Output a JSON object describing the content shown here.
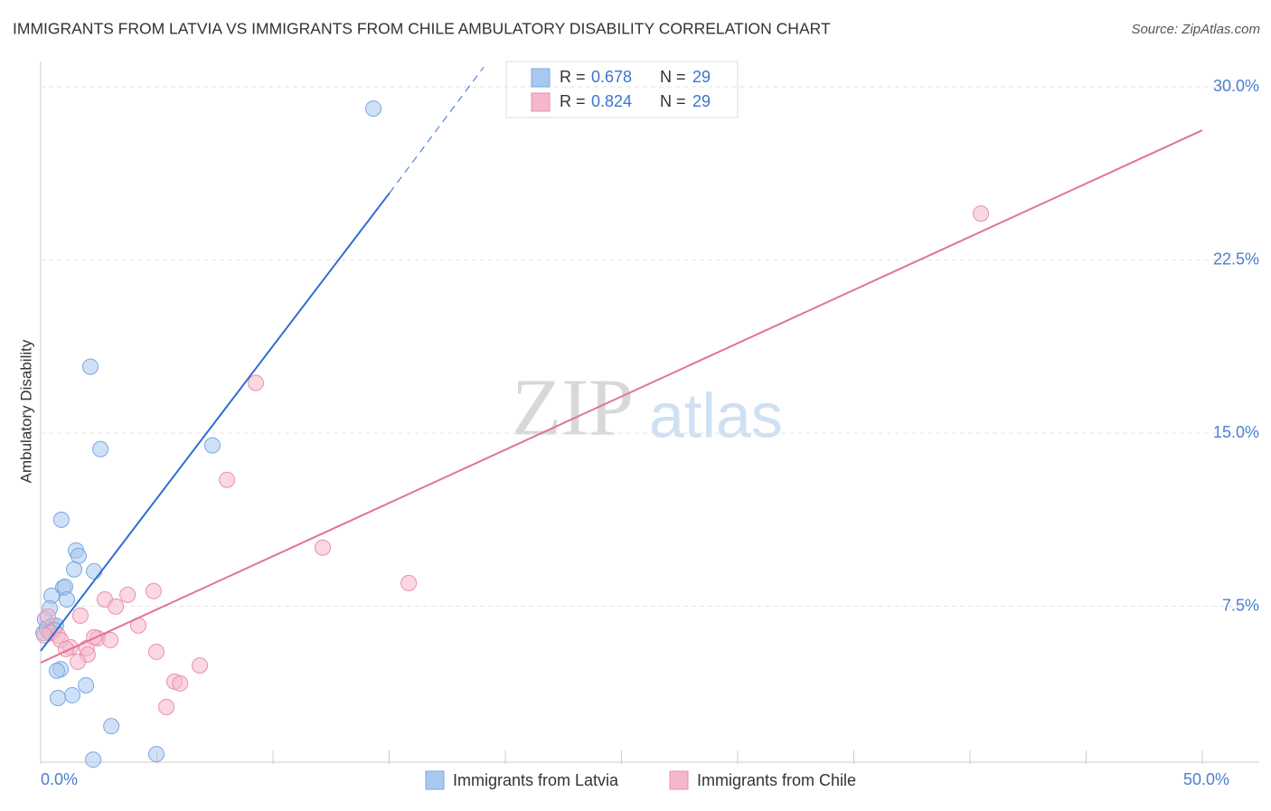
{
  "chart_data": {
    "type": "scatter",
    "title": "IMMIGRANTS FROM LATVIA VS IMMIGRANTS FROM CHILE AMBULATORY DISABILITY CORRELATION CHART",
    "source": "Source: ZipAtlas.com",
    "y_label": "Ambulatory Disability",
    "watermark": [
      "ZIP",
      "atlas"
    ],
    "xlim": [
      0,
      50
    ],
    "ylim": [
      0.75,
      31.1
    ],
    "xticks": [
      {
        "value": 0,
        "label": "0.0%"
      },
      {
        "value": 50,
        "label": "50.0%"
      }
    ],
    "xminor": [
      5,
      10,
      15,
      20,
      25,
      30,
      35,
      40,
      45
    ],
    "yticks": [
      {
        "value": 7.5,
        "label": "7.5%"
      },
      {
        "value": 15,
        "label": "15.0%"
      },
      {
        "value": 22.5,
        "label": "22.5%"
      },
      {
        "value": 30,
        "label": "30.0%"
      }
    ],
    "grid": true,
    "r_label": "R =",
    "n_label": "N =",
    "series": [
      {
        "name": "Immigrants from Latvia",
        "color": "#a9c8f0",
        "edge": "#7aa7e0",
        "line": "#2f6fd0",
        "r": 0.678,
        "n": 29,
        "x": [
          14.32,
          2.14,
          2.57,
          7.39,
          0.89,
          1.52,
          1.63,
          1.44,
          2.3,
          0.97,
          1.05,
          0.47,
          1.13,
          0.39,
          0.19,
          0.51,
          0.66,
          0.12,
          0.39,
          0.27,
          0.86,
          0.7,
          1.95,
          1.36,
          0.74,
          3.04,
          2.26,
          4.98,
          0.58
        ],
        "values": [
          29.06,
          17.88,
          14.31,
          14.47,
          11.25,
          9.92,
          9.69,
          9.1,
          9.02,
          8.31,
          8.35,
          7.96,
          7.8,
          7.41,
          6.94,
          6.67,
          6.67,
          6.35,
          6.35,
          6.55,
          4.78,
          4.71,
          4.08,
          3.65,
          3.53,
          2.31,
          0.86,
          1.1,
          6.47
        ],
        "trend": {
          "x": [
            0,
            15.02
          ],
          "y": [
            5.57,
            25.41
          ]
        },
        "trend_dashed": {
          "x": [
            15.02,
            19.07
          ],
          "y": [
            25.41,
            30.86
          ]
        }
      },
      {
        "name": "Immigrants from Chile",
        "color": "#f5b8cb",
        "edge": "#e98fab",
        "line": "#e0739a",
        "r": 0.824,
        "n": 29,
        "x": [
          40.47,
          9.26,
          8.02,
          12.14,
          15.84,
          4.86,
          3.74,
          2.76,
          3.23,
          1.71,
          4.2,
          0.31,
          0.43,
          0.74,
          0.86,
          1.28,
          1.98,
          2.45,
          2.3,
          3.0,
          1.09,
          2.02,
          1.6,
          4.98,
          6.85,
          5.76,
          6.0,
          5.41,
          0.16
        ],
        "values": [
          24.51,
          17.18,
          12.98,
          10.04,
          8.51,
          8.16,
          8.0,
          7.8,
          7.49,
          7.1,
          6.67,
          7.06,
          6.35,
          6.24,
          6.04,
          5.73,
          5.69,
          6.12,
          6.16,
          6.04,
          5.65,
          5.41,
          5.1,
          5.53,
          4.94,
          4.24,
          4.16,
          3.14,
          6.24
        ],
        "trend": {
          "x": [
            0,
            50
          ],
          "y": [
            5.06,
            28.12
          ]
        }
      }
    ]
  }
}
